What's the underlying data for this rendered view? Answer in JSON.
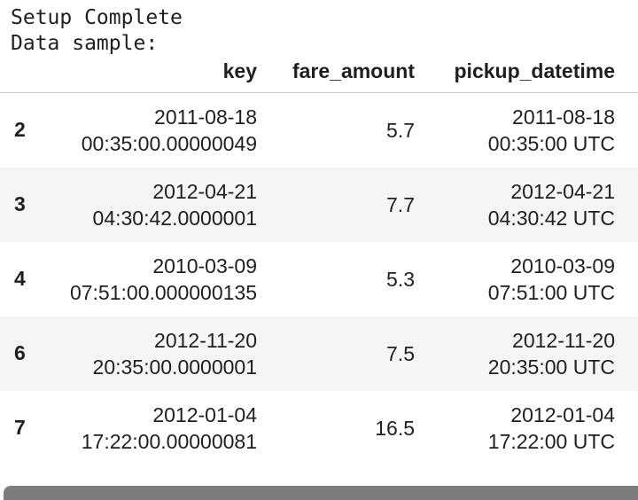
{
  "output": {
    "line1": "Setup Complete",
    "line2": "Data sample:"
  },
  "table": {
    "columns": [
      "key",
      "fare_amount",
      "pickup_datetime"
    ],
    "rows": [
      {
        "index": "2",
        "key_date": "2011-08-18",
        "key_time": "00:35:00.00000049",
        "fare": "5.7",
        "pickup_date": "2011-08-18",
        "pickup_time": "00:35:00 UTC"
      },
      {
        "index": "3",
        "key_date": "2012-04-21",
        "key_time": "04:30:42.0000001",
        "fare": "7.7",
        "pickup_date": "2012-04-21",
        "pickup_time": "04:30:42 UTC"
      },
      {
        "index": "4",
        "key_date": "2010-03-09",
        "key_time": "07:51:00.000000135",
        "fare": "5.3",
        "pickup_date": "2010-03-09",
        "pickup_time": "07:51:00 UTC"
      },
      {
        "index": "6",
        "key_date": "2012-11-20",
        "key_time": "20:35:00.0000001",
        "fare": "7.5",
        "pickup_date": "2012-11-20",
        "pickup_time": "20:35:00 UTC"
      },
      {
        "index": "7",
        "key_date": "2012-01-04",
        "key_time": "17:22:00.00000081",
        "fare": "16.5",
        "pickup_date": "2012-01-04",
        "pickup_time": "17:22:00 UTC"
      }
    ]
  },
  "colors": {
    "stripe": "#f5f5f5",
    "scrollbar": "#7d7d7d"
  }
}
